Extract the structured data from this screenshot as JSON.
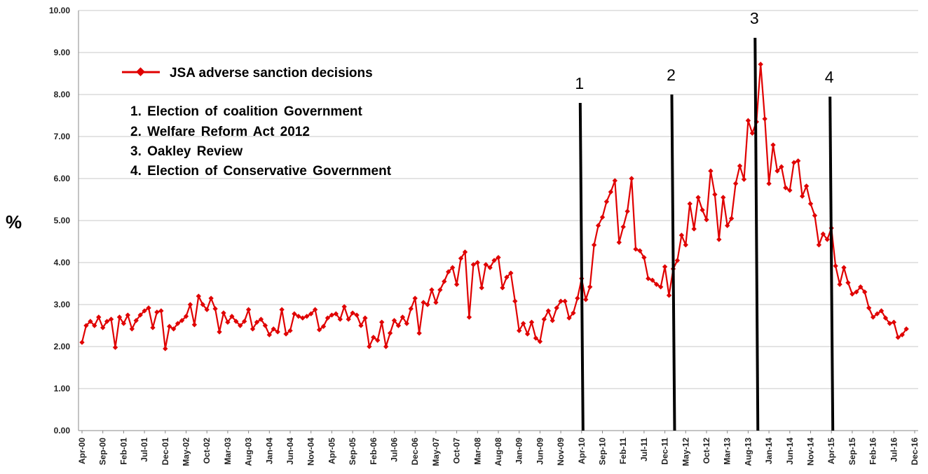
{
  "chart_data": {
    "type": "line",
    "title": "",
    "xlabel": "",
    "ylabel": "%",
    "ylim": [
      0,
      10
    ],
    "yticks": [
      "0.00",
      "1.00",
      "2.00",
      "3.00",
      "4.00",
      "5.00",
      "6.00",
      "7.00",
      "8.00",
      "9.00",
      "10.00"
    ],
    "grid": "horizontal",
    "x_start": "Apr-00",
    "x_tick_labels": [
      "Apr-00",
      "Sep-00",
      "Feb-01",
      "Jul-01",
      "Dec-01",
      "May-02",
      "Oct-02",
      "Mar-03",
      "Aug-03",
      "Jan-04",
      "Jun-04",
      "Nov-04",
      "Apr-05",
      "Sep-05",
      "Feb-06",
      "Jul-06",
      "Dec-06",
      "May-07",
      "Oct-07",
      "Mar-08",
      "Aug-08",
      "Jan-09",
      "Jun-09",
      "Nov-09",
      "Apr-10",
      "Sep-10",
      "Feb-11",
      "Jul-11",
      "Dec-11",
      "May-12",
      "Oct-12",
      "Mar-13",
      "Aug-13",
      "Jan-14",
      "Jun-14",
      "Nov-14",
      "Apr-15",
      "Sep-15",
      "Feb-16",
      "Jul-16",
      "Dec-16"
    ],
    "legend_position": "top-left",
    "series": [
      {
        "name": "JSA adverse sanction decisions",
        "color": "#e00000",
        "values": [
          2.1,
          2.5,
          2.6,
          2.5,
          2.7,
          2.45,
          2.6,
          2.65,
          1.98,
          2.7,
          2.55,
          2.75,
          2.42,
          2.62,
          2.75,
          2.85,
          2.92,
          2.45,
          2.82,
          2.85,
          1.95,
          2.48,
          2.42,
          2.55,
          2.62,
          2.72,
          3.0,
          2.52,
          3.2,
          3.0,
          2.88,
          3.15,
          2.9,
          2.35,
          2.8,
          2.58,
          2.72,
          2.6,
          2.5,
          2.6,
          2.88,
          2.42,
          2.58,
          2.65,
          2.5,
          2.28,
          2.42,
          2.35,
          2.88,
          2.3,
          2.38,
          2.78,
          2.72,
          2.68,
          2.72,
          2.78,
          2.88,
          2.4,
          2.48,
          2.68,
          2.75,
          2.78,
          2.65,
          2.95,
          2.65,
          2.8,
          2.75,
          2.5,
          2.68,
          2.0,
          2.22,
          2.15,
          2.58,
          2.0,
          2.32,
          2.62,
          2.5,
          2.7,
          2.55,
          2.9,
          3.15,
          2.32,
          3.05,
          3.0,
          3.35,
          3.05,
          3.35,
          3.55,
          3.78,
          3.88,
          3.48,
          4.1,
          4.25,
          2.7,
          3.95,
          4.0,
          3.4,
          3.95,
          3.88,
          4.05,
          4.12,
          3.4,
          3.65,
          3.75,
          3.08,
          2.38,
          2.55,
          2.3,
          2.58,
          2.2,
          2.12,
          2.65,
          2.85,
          2.62,
          2.92,
          3.08,
          3.08,
          2.68,
          2.8,
          3.15,
          3.62,
          3.12,
          3.42,
          4.42,
          4.88,
          5.08,
          5.45,
          5.68,
          5.95,
          4.48,
          4.85,
          5.22,
          6.0,
          4.32,
          4.28,
          4.12,
          3.62,
          3.58,
          3.48,
          3.42,
          3.9,
          3.22,
          3.85,
          4.05,
          4.65,
          4.42,
          5.4,
          4.8,
          5.55,
          5.25,
          5.02,
          6.18,
          5.62,
          4.55,
          5.55,
          4.88,
          5.05,
          5.88,
          6.3,
          5.98,
          7.38,
          7.08,
          7.35,
          8.72,
          7.42,
          5.88,
          6.8,
          6.18,
          6.28,
          5.78,
          5.72,
          6.38,
          6.42,
          5.58,
          5.82,
          5.4,
          5.12,
          4.42,
          4.68,
          4.55,
          4.82,
          3.92,
          3.48,
          3.88,
          3.52,
          3.25,
          3.3,
          3.42,
          3.3,
          2.92,
          2.7,
          2.78,
          2.85,
          2.68,
          2.55,
          2.58,
          2.22,
          2.28,
          2.42
        ]
      }
    ],
    "vertical_markers": [
      {
        "label": "1",
        "month_index": 120
      },
      {
        "label": "2",
        "month_index": 142
      },
      {
        "label": "3",
        "month_index": 162
      },
      {
        "label": "4",
        "month_index": 180
      }
    ],
    "annotations": [
      "1.  Election of coalition Government",
      "2.  Welfare Reform Act 2012",
      "3.  Oakley Review",
      "4.  Election of Conservative Government"
    ]
  }
}
